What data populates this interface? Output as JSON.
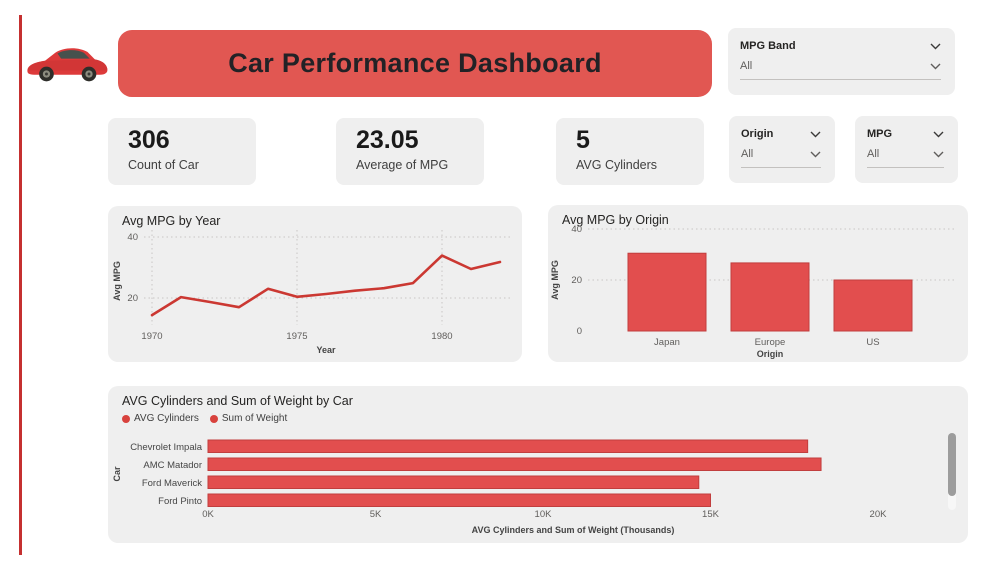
{
  "header": {
    "title": "Car Performance Dashboard",
    "logo_icon": "red-car-icon"
  },
  "slicers": {
    "mpg_band": {
      "label": "MPG Band",
      "value": "All"
    },
    "origin": {
      "label": "Origin",
      "value": "All"
    },
    "mpg": {
      "label": "MPG",
      "value": "All"
    }
  },
  "kpis": [
    {
      "value": "306",
      "label": "Count of Car"
    },
    {
      "value": "23.05",
      "label": "Average of MPG"
    },
    {
      "value": "5",
      "label": "AVG Cylinders"
    }
  ],
  "colors": {
    "banner_red": "#E15752",
    "accent_line_red": "#C53030",
    "bar_fill": "#E24E4E",
    "bar_border": "#C13E3E",
    "line_red": "#CB3832",
    "legend_dot_red": "#D8423D",
    "card_bg": "#EFEFEF",
    "text_dark": "#252423",
    "text_gray": "#605E5C"
  },
  "chart_data": [
    {
      "type": "line",
      "title": "Avg MPG by Year",
      "xlabel": "Year",
      "ylabel": "Avg MPG",
      "x": [
        1970,
        1971,
        1972,
        1973,
        1974,
        1975,
        1976,
        1977,
        1978,
        1979,
        1980,
        1981,
        1982
      ],
      "values": [
        14.4,
        20.3,
        18.7,
        17.0,
        23.0,
        20.4,
        21.3,
        22.4,
        23.2,
        24.9,
        33.9,
        29.5,
        31.8
      ],
      "xticks": [
        1970,
        1975,
        1980
      ],
      "yticks": [
        20,
        40
      ],
      "ylim": [
        10,
        42
      ],
      "grid": "dotted"
    },
    {
      "type": "bar",
      "title": "Avg MPG by Origin",
      "xlabel": "Origin",
      "ylabel": "Avg MPG",
      "categories": [
        "Japan",
        "Europe",
        "US"
      ],
      "values": [
        30.5,
        26.7,
        20.0
      ],
      "yticks": [
        0,
        20,
        40
      ],
      "ylim": [
        0,
        40
      ],
      "grid": "dotted"
    },
    {
      "type": "bar-horizontal",
      "title": "AVG Cylinders and Sum of Weight by Car",
      "legend": [
        "AVG Cylinders",
        "Sum of Weight"
      ],
      "legend_position": "top",
      "xlabel": "AVG Cylinders and Sum of Weight (Thousands)",
      "ylabel": "Car",
      "categories": [
        "Chevrolet Impala",
        "AMC Matador",
        "Ford Maverick",
        "Ford Pinto"
      ],
      "values_thousands": [
        17.9,
        18.3,
        14.65,
        15.0
      ],
      "series": [
        {
          "name": "AVG Cylinders",
          "note": "stacked with Sum of Weight, visually negligible at thousands scale"
        },
        {
          "name": "Sum of Weight"
        }
      ],
      "xticks": [
        "0K",
        "5K",
        "10K",
        "15K",
        "20K"
      ],
      "xlim_thousands": [
        0,
        22.5
      ],
      "scrollbar": true
    }
  ]
}
